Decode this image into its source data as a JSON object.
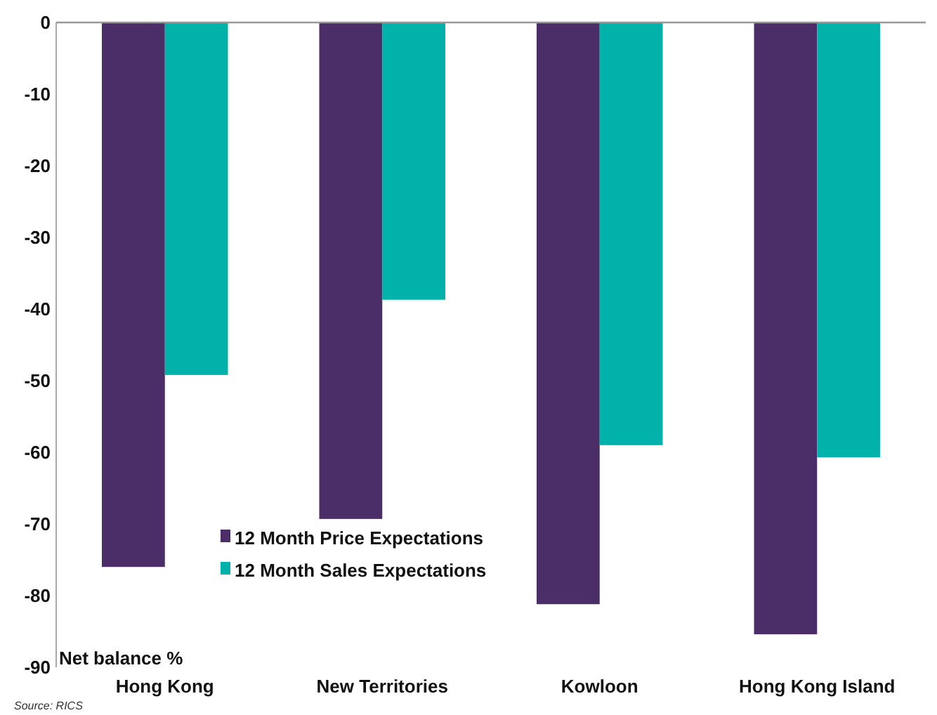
{
  "chart_data": {
    "type": "bar",
    "categories": [
      "Hong Kong",
      "New Territories",
      "Kowloon",
      "Hong Kong Island"
    ],
    "series": [
      {
        "name": "12 Month Price Expectations",
        "color": "#4b2e67",
        "values": [
          -76,
          -69.3,
          -81.2,
          -85.4
        ]
      },
      {
        "name": "12 Month Sales Expectations",
        "color": "#00b2aa",
        "values": [
          -49.2,
          -38.7,
          -59,
          -60.7
        ]
      }
    ],
    "ylabel": "Net balance %",
    "ylim": [
      -90,
      0
    ],
    "yticks": [
      0,
      -10,
      -20,
      -30,
      -40,
      -50,
      -60,
      -70,
      -80,
      -90
    ],
    "grid": false,
    "legend": "bottom left",
    "annotations": [
      "Source: RICS"
    ]
  }
}
